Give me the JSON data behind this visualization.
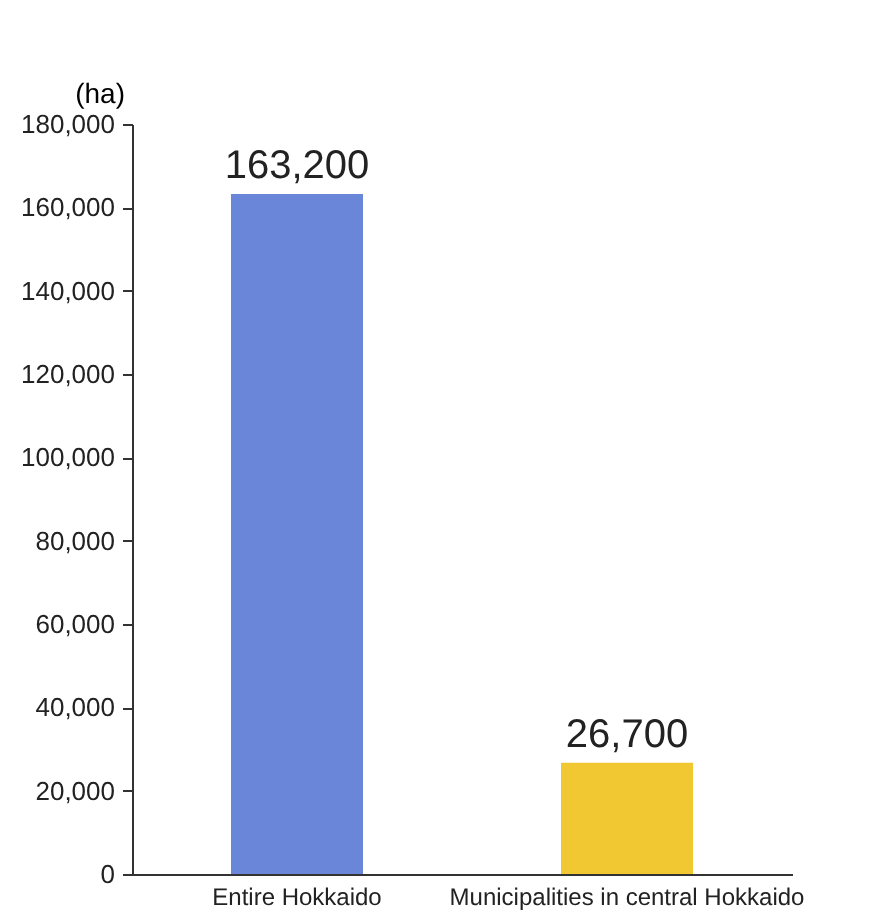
{
  "chart_data": {
    "type": "bar",
    "ylabel": "(ha)",
    "categories": [
      "Entire Hokkaido",
      "Municipalities in central Hokkaido"
    ],
    "values": [
      163200,
      26700
    ],
    "value_labels": [
      "163,200",
      "26,700"
    ],
    "colors": [
      "#6a86d8",
      "#f2c832"
    ],
    "ylim": [
      0,
      180000
    ],
    "yticks": [
      0,
      {
        "value": 20000,
        "label": "20,000"
      },
      {
        "value": 40000,
        "label": "40,000"
      },
      {
        "value": 60000,
        "label": "60,000"
      },
      {
        "value": 80000,
        "label": "80,000"
      },
      {
        "value": 100000,
        "label": "100,000"
      },
      {
        "value": 120000,
        "label": "120,000"
      },
      {
        "value": 140000,
        "label": "140,000"
      },
      {
        "value": 160000,
        "label": "160,000"
      },
      {
        "value": 180000,
        "label": "180,000"
      }
    ],
    "grid": false,
    "legend": false
  }
}
